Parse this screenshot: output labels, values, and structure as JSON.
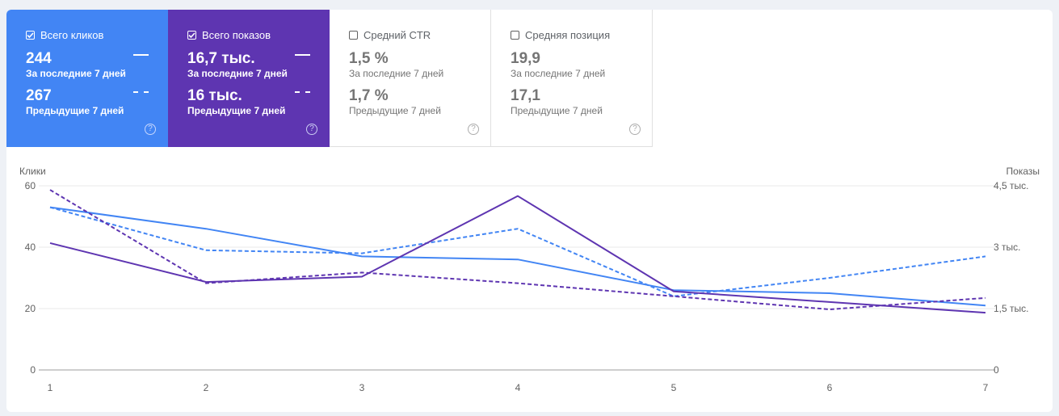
{
  "cards": [
    {
      "label": "Всего кликов",
      "value_current": "244",
      "period_current": "За последние 7 дней",
      "value_previous": "267",
      "period_previous": "Предыдущие 7 дней",
      "selected": true,
      "color": "#4285f4"
    },
    {
      "label": "Всего показов",
      "value_current": "16,7 тыс.",
      "period_current": "За последние 7 дней",
      "value_previous": "16 тыс.",
      "period_previous": "Предыдущие 7 дней",
      "selected": true,
      "color": "#5e35b1"
    },
    {
      "label": "Средний CTR",
      "value_current": "1,5 %",
      "period_current": "За последние 7 дней",
      "value_previous": "1,7 %",
      "period_previous": "Предыдущие 7 дней",
      "selected": false
    },
    {
      "label": "Средняя позиция",
      "value_current": "19,9",
      "period_current": "За последние 7 дней",
      "value_previous": "17,1",
      "period_previous": "Предыдущие 7 дней",
      "selected": false
    }
  ],
  "help_glyph": "?",
  "chart_data": {
    "type": "line",
    "x": [
      1,
      2,
      3,
      4,
      5,
      6,
      7
    ],
    "x_tick_labels": [
      "1",
      "2",
      "3",
      "4",
      "5",
      "6",
      "7"
    ],
    "ylabel_left": "Клики",
    "ylabel_right": "Показы",
    "ylim_left": [
      0,
      60
    ],
    "ylim_right": [
      0,
      4500
    ],
    "y_ticks_left": [
      "0",
      "20",
      "40",
      "60"
    ],
    "y_ticks_right": [
      "0",
      "1,5 тыс.",
      "3 тыс.",
      "4,5 тыс."
    ],
    "grid": true,
    "series": [
      {
        "axis": "left",
        "style": "solid",
        "color": "#4285f4",
        "values": [
          53,
          46,
          37,
          36,
          26,
          25,
          21
        ]
      },
      {
        "axis": "left",
        "style": "dashed",
        "color": "#4285f4",
        "values": [
          53,
          39,
          38,
          46,
          24,
          30,
          37
        ]
      },
      {
        "axis": "right",
        "style": "solid",
        "color": "#5e35b1",
        "values": [
          3100,
          2150,
          2280,
          4250,
          1920,
          1660,
          1400
        ]
      },
      {
        "axis": "right",
        "style": "dashed",
        "color": "#5e35b1",
        "values": [
          4400,
          2120,
          2380,
          2120,
          1800,
          1480,
          1760
        ]
      }
    ]
  }
}
